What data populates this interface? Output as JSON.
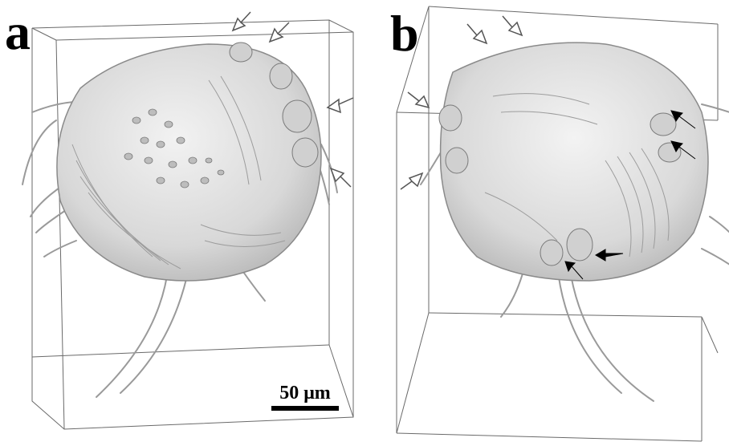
{
  "panels": [
    {
      "label": "a"
    },
    {
      "label": "b"
    }
  ],
  "scale_bar": {
    "label": "50 μm"
  },
  "colors": {
    "specimen_fill": "#dcdcdc",
    "specimen_stroke": "#8a8a8a",
    "box_stroke": "#6a6a6a",
    "arrow_open": "#ffffff",
    "arrow_filled": "#000000"
  }
}
